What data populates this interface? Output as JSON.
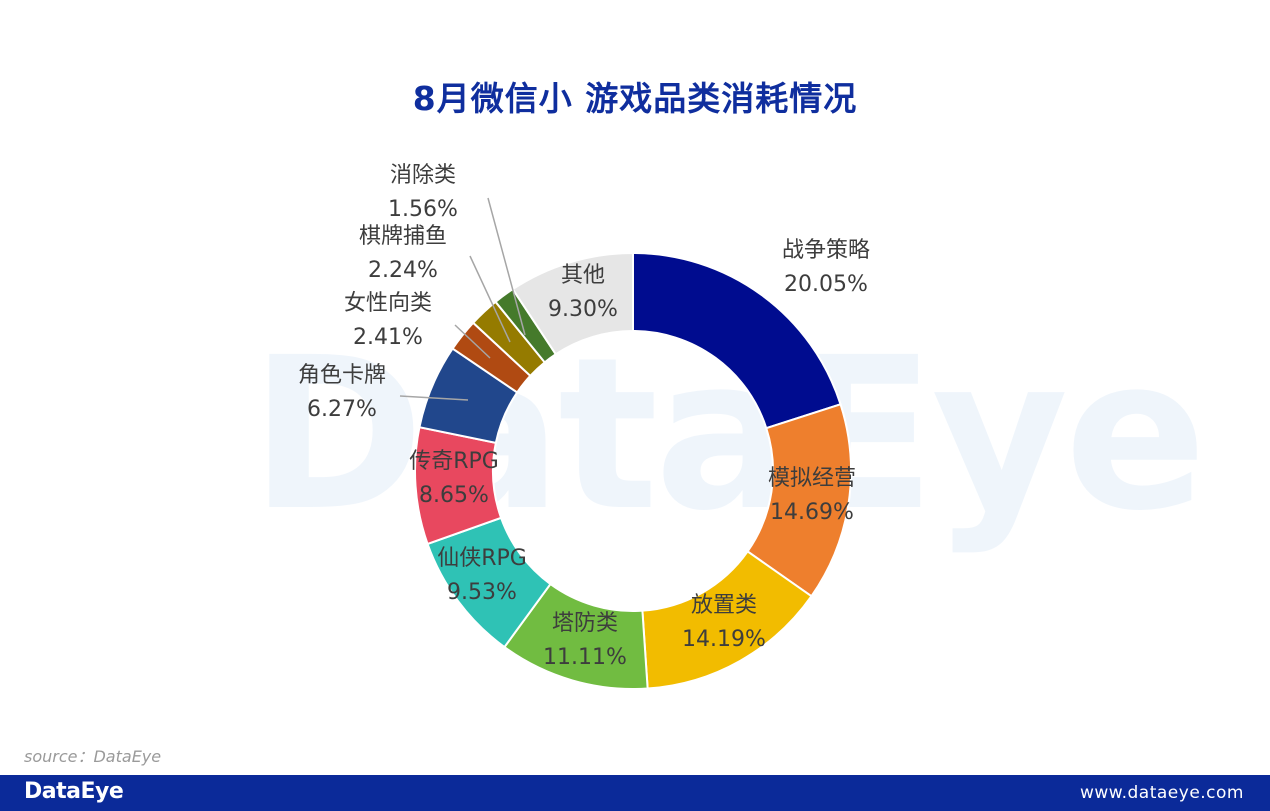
{
  "title": "8月微信小 游戏品类消耗情况",
  "watermark_text": "DataEye",
  "source": "source：DataEye",
  "footer": {
    "logo": "DataEye",
    "url": "www.dataeye.com",
    "bg_color": "#0b2a99"
  },
  "chart_data": {
    "type": "pie",
    "variant": "donut",
    "title": "8月微信小 游戏品类消耗情况",
    "slices": [
      {
        "label": "战争策略",
        "value": 20.05,
        "display": "20.05%",
        "color": "#000c8f"
      },
      {
        "label": "模拟经营",
        "value": 14.69,
        "display": "14.69%",
        "color": "#ee7f2d"
      },
      {
        "label": "放置类",
        "value": 14.19,
        "display": "14.19%",
        "color": "#f2bc00"
      },
      {
        "label": "塔防类",
        "value": 11.11,
        "display": "11.11%",
        "color": "#71bc41"
      },
      {
        "label": "仙侠RPG",
        "value": 9.53,
        "display": "9.53%",
        "color": "#2fc2b5"
      },
      {
        "label": "传奇RPG",
        "value": 8.65,
        "display": "8.65%",
        "color": "#e8485f"
      },
      {
        "label": "角色卡牌",
        "value": 6.27,
        "display": "6.27%",
        "color": "#21478c"
      },
      {
        "label": "女性向类",
        "value": 2.41,
        "display": "2.41%",
        "color": "#b04a12"
      },
      {
        "label": "棋牌捕鱼",
        "value": 2.24,
        "display": "2.24%",
        "color": "#957b00"
      },
      {
        "label": "消除类",
        "value": 1.56,
        "display": "1.56%",
        "color": "#457a2b"
      },
      {
        "label": "其他",
        "value": 9.3,
        "display": "9.30%",
        "color": "#e6e6e6"
      }
    ],
    "legend": "none"
  }
}
